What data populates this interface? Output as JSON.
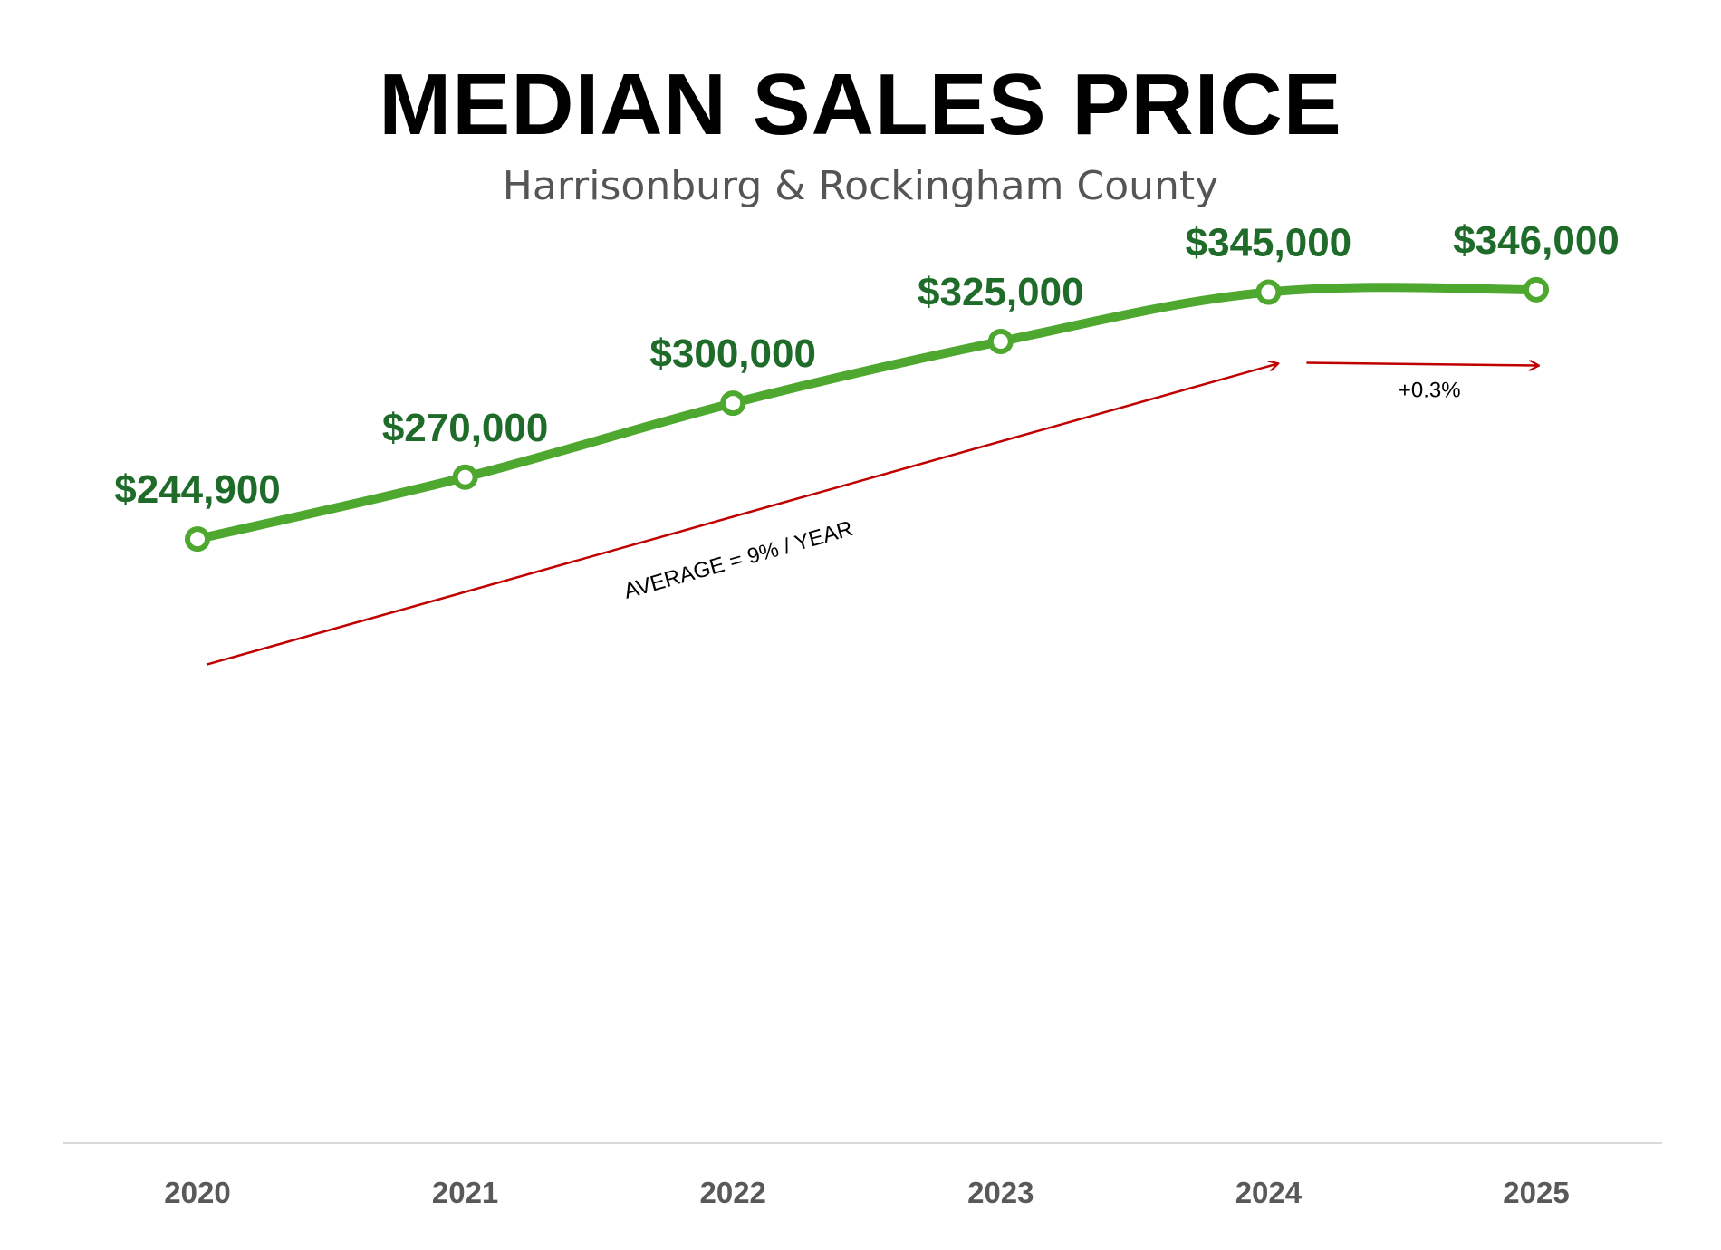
{
  "colors": {
    "line": "#4ea72e",
    "label": "#1f6b2a",
    "marker_fill": "#ffffff",
    "trend": "#c00000",
    "axis": "#d9d9d9"
  },
  "chart_data": {
    "type": "line",
    "title": "MEDIAN SALES PRICE",
    "subtitle": "Harrisonburg & Rockingham County",
    "categories": [
      "2020",
      "2021",
      "2022",
      "2023",
      "2024",
      "2025"
    ],
    "series": [
      {
        "values": [
          244900,
          270000,
          300000,
          325000,
          345000,
          346000
        ]
      }
    ],
    "data_labels": [
      "$244,900",
      "$270,000",
      "$300,000",
      "$325,000",
      "$345,000",
      "$346,000"
    ],
    "ylim": [
      0,
      390000
    ],
    "grid": false,
    "legend": "none",
    "annotations": [
      {
        "text": "AVERAGE = 9% / YEAR",
        "from": [
          "2020",
          194000
        ],
        "to": [
          "2024",
          316000
        ]
      },
      {
        "text": "+0.3%",
        "from": [
          "2024",
          316000
        ],
        "to": [
          "2025",
          316000
        ]
      }
    ]
  }
}
